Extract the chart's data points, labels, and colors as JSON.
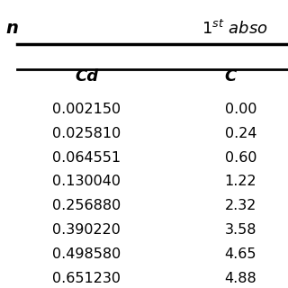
{
  "header_row1_left": "n",
  "header_row1_right": "1st abso",
  "header_row2_col1": "Cd",
  "header_row2_col2": "C",
  "cd_values": [
    "0.002150",
    "0.025810",
    "0.064551",
    "0.130040",
    "0.256880",
    "0.390220",
    "0.498580",
    "0.651230"
  ],
  "c_values": [
    "0.00",
    "0.24",
    "0.60",
    "1.22",
    "2.32",
    "3.58",
    "4.65",
    "4.88"
  ],
  "background_color": "#ffffff",
  "text_color": "#000000",
  "line_color": "#000000"
}
